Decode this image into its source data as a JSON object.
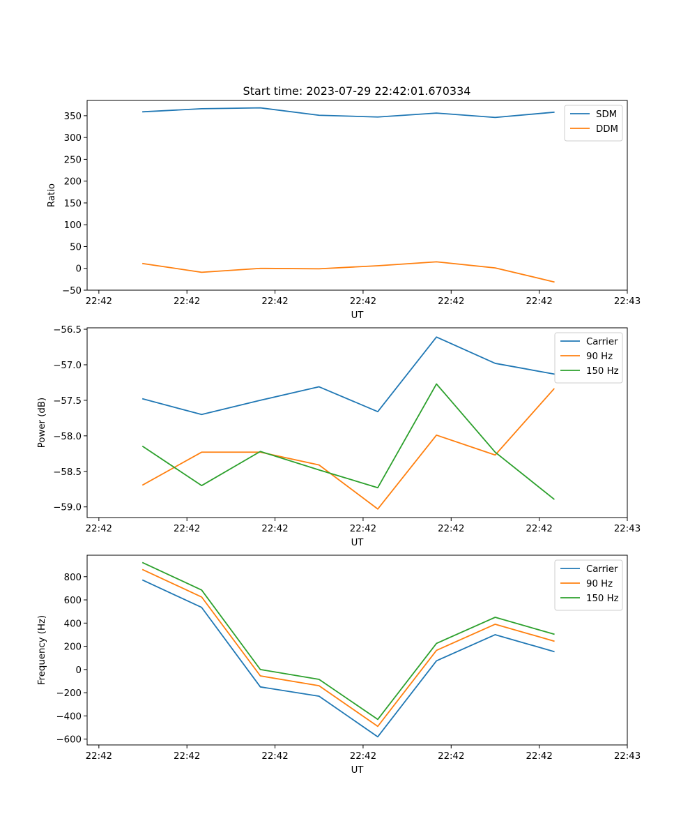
{
  "figure_title": "Start time: 2023-07-29 22:42:01.670334",
  "colors": {
    "blue": "#1f77b4",
    "orange": "#ff7f0e",
    "green": "#2ca02c"
  },
  "chart_data": [
    {
      "type": "line",
      "title": "Start time: 2023-07-29 22:42:01.670334",
      "xlabel": "UT",
      "ylabel": "Ratio",
      "x": [
        1,
        2,
        3,
        4,
        5,
        6,
        7,
        8
      ],
      "xlim": [
        0.05,
        9.25
      ],
      "xticks": [
        0.25,
        1.75,
        3.25,
        4.75,
        6.25,
        7.75,
        9.25
      ],
      "xtick_labels": [
        "22:42",
        "22:42",
        "22:42",
        "22:42",
        "22:42",
        "22:42",
        "22:43"
      ],
      "ylim": [
        -50,
        385
      ],
      "yticks": [
        -50,
        0,
        50,
        100,
        150,
        200,
        250,
        300,
        350
      ],
      "ytick_labels": [
        "−50",
        "0",
        "50",
        "100",
        "150",
        "200",
        "250",
        "300",
        "350"
      ],
      "legend": "top-right",
      "series": [
        {
          "name": "SDM",
          "color": "blue",
          "values": [
            359,
            366,
            368,
            351,
            347,
            356,
            346,
            358
          ]
        },
        {
          "name": "DDM",
          "color": "orange",
          "values": [
            11,
            -9,
            0,
            -1,
            6,
            15,
            1,
            -31
          ]
        }
      ]
    },
    {
      "type": "line",
      "xlabel": "UT",
      "ylabel": "Power (dB)",
      "x": [
        1,
        2,
        3,
        4,
        5,
        6,
        7,
        8
      ],
      "xlim": [
        0.05,
        9.25
      ],
      "xticks": [
        0.25,
        1.75,
        3.25,
        4.75,
        6.25,
        7.75,
        9.25
      ],
      "xtick_labels": [
        "22:42",
        "22:42",
        "22:42",
        "22:42",
        "22:42",
        "22:42",
        "22:43"
      ],
      "ylim": [
        -59.15,
        -56.48
      ],
      "yticks": [
        -59.0,
        -58.5,
        -58.0,
        -57.5,
        -57.0,
        -56.5
      ],
      "ytick_labels": [
        "−59.0",
        "−58.5",
        "−58.0",
        "−57.5",
        "−57.0",
        "−56.5"
      ],
      "legend": "top-right",
      "series": [
        {
          "name": "Carrier",
          "color": "blue",
          "values": [
            -57.48,
            -57.7,
            -57.5,
            -57.31,
            -57.66,
            -56.61,
            -56.98,
            -57.13
          ]
        },
        {
          "name": "90 Hz",
          "color": "orange",
          "values": [
            -58.69,
            -58.23,
            -58.23,
            -58.41,
            -59.03,
            -57.99,
            -58.27,
            -57.34
          ]
        },
        {
          "name": "150 Hz",
          "color": "green",
          "values": [
            -58.15,
            -58.7,
            -58.22,
            -58.48,
            -58.73,
            -57.27,
            -58.23,
            -58.89
          ]
        }
      ]
    },
    {
      "type": "line",
      "xlabel": "UT",
      "ylabel": "Frequency (Hz)",
      "x": [
        1,
        2,
        3,
        4,
        5,
        6,
        7,
        8
      ],
      "xlim": [
        0.05,
        9.25
      ],
      "xticks": [
        0.25,
        1.75,
        3.25,
        4.75,
        6.25,
        7.75,
        9.25
      ],
      "xtick_labels": [
        "22:42",
        "22:42",
        "22:42",
        "22:42",
        "22:42",
        "22:42",
        "22:43"
      ],
      "ylim": [
        -650,
        985
      ],
      "yticks": [
        -600,
        -400,
        -200,
        0,
        200,
        400,
        600,
        800
      ],
      "ytick_labels": [
        "−600",
        "−400",
        "−200",
        "0",
        "200",
        "400",
        "600",
        "800"
      ],
      "legend": "top-right",
      "series": [
        {
          "name": "Carrier",
          "color": "blue",
          "values": [
            770,
            535,
            -150,
            -230,
            -580,
            75,
            300,
            155
          ]
        },
        {
          "name": "90 Hz",
          "color": "orange",
          "values": [
            860,
            625,
            -55,
            -140,
            -490,
            165,
            390,
            245
          ]
        },
        {
          "name": "150 Hz",
          "color": "green",
          "values": [
            920,
            685,
            0,
            -85,
            -430,
            225,
            450,
            305
          ]
        }
      ]
    }
  ]
}
